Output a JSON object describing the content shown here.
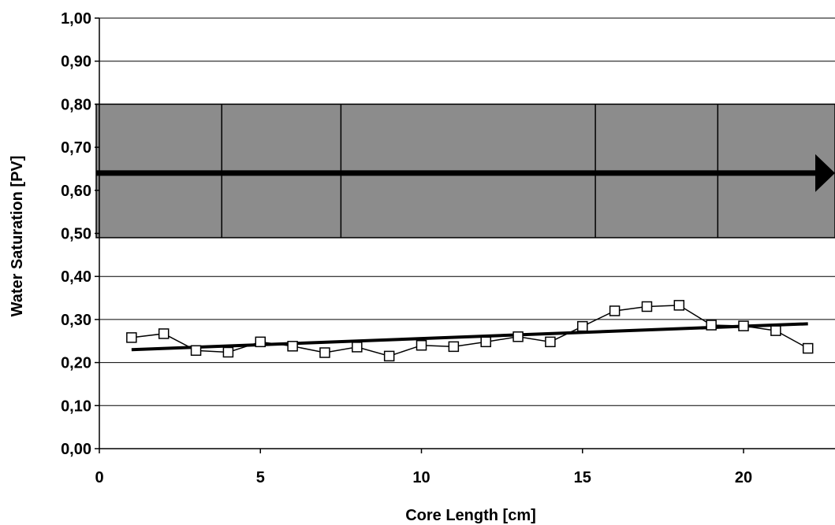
{
  "chart_data": {
    "type": "line",
    "title": "",
    "xlabel": "Core Length [cm]",
    "ylabel": "Water Saturation [PV]",
    "xlim": [
      0,
      22.5
    ],
    "ylim": [
      0,
      1.0
    ],
    "grid": true,
    "legend": "none",
    "x_ticks": [
      "0",
      "5",
      "10",
      "15",
      "20"
    ],
    "y_ticks": [
      "0,00",
      "0,10",
      "0,20",
      "0,30",
      "0,40",
      "0,50",
      "0,60",
      "0,70",
      "0,80",
      "0,90",
      "1,00"
    ],
    "series": [
      {
        "marker": "open-square",
        "x": [
          1,
          2,
          3,
          4,
          5,
          6,
          7,
          8,
          9,
          10,
          11,
          12,
          13,
          14,
          15,
          16,
          17,
          18,
          19,
          20,
          21,
          22
        ],
        "y": [
          0.258,
          0.267,
          0.228,
          0.224,
          0.248,
          0.238,
          0.223,
          0.236,
          0.215,
          0.24,
          0.237,
          0.248,
          0.26,
          0.248,
          0.284,
          0.32,
          0.33,
          0.333,
          0.287,
          0.285,
          0.274,
          0.233
        ]
      }
    ],
    "trendline": {
      "x": [
        1,
        22
      ],
      "y": [
        0.23,
        0.29
      ]
    },
    "core_schematic": {
      "y_range": [
        0.49,
        0.8
      ],
      "segment_boundaries": [
        3.8,
        7.5,
        15.4,
        19.2
      ],
      "flow_arrow_y": 0.64,
      "color": "#8c8c8c"
    }
  }
}
